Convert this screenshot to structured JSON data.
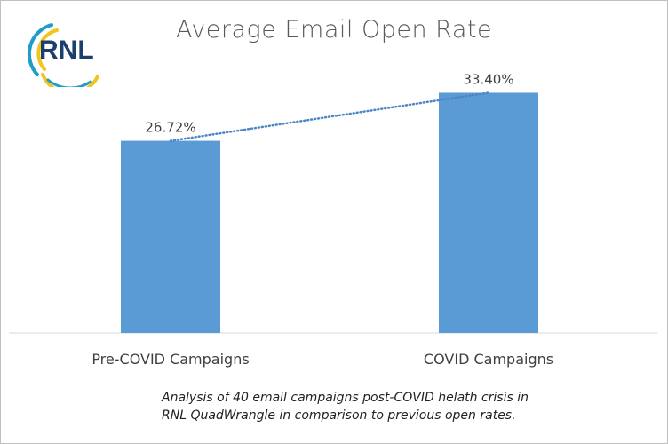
{
  "logo": {
    "text": "RNL",
    "colors": {
      "navy": "#1b3f6e",
      "teal": "#1f9dc9",
      "yellow": "#f2c51c"
    }
  },
  "chart_data": {
    "type": "bar",
    "title": "Average Email Open Rate",
    "categories": [
      "Pre-COVID Campaigns",
      "COVID Campaigns"
    ],
    "values": [
      26.72,
      33.4
    ],
    "data_labels": [
      "26.72%",
      "33.40%"
    ],
    "ylim": [
      0,
      40
    ],
    "unit": "%",
    "trendline": {
      "style": "dotted",
      "type": "linear"
    },
    "grid": false,
    "legend": "none",
    "bar_color": "#5b9bd5"
  },
  "caption": "Analysis of 40 email campaigns post-COVID helath crisis in\nRNL QuadWrangle in comparison to previous open rates."
}
